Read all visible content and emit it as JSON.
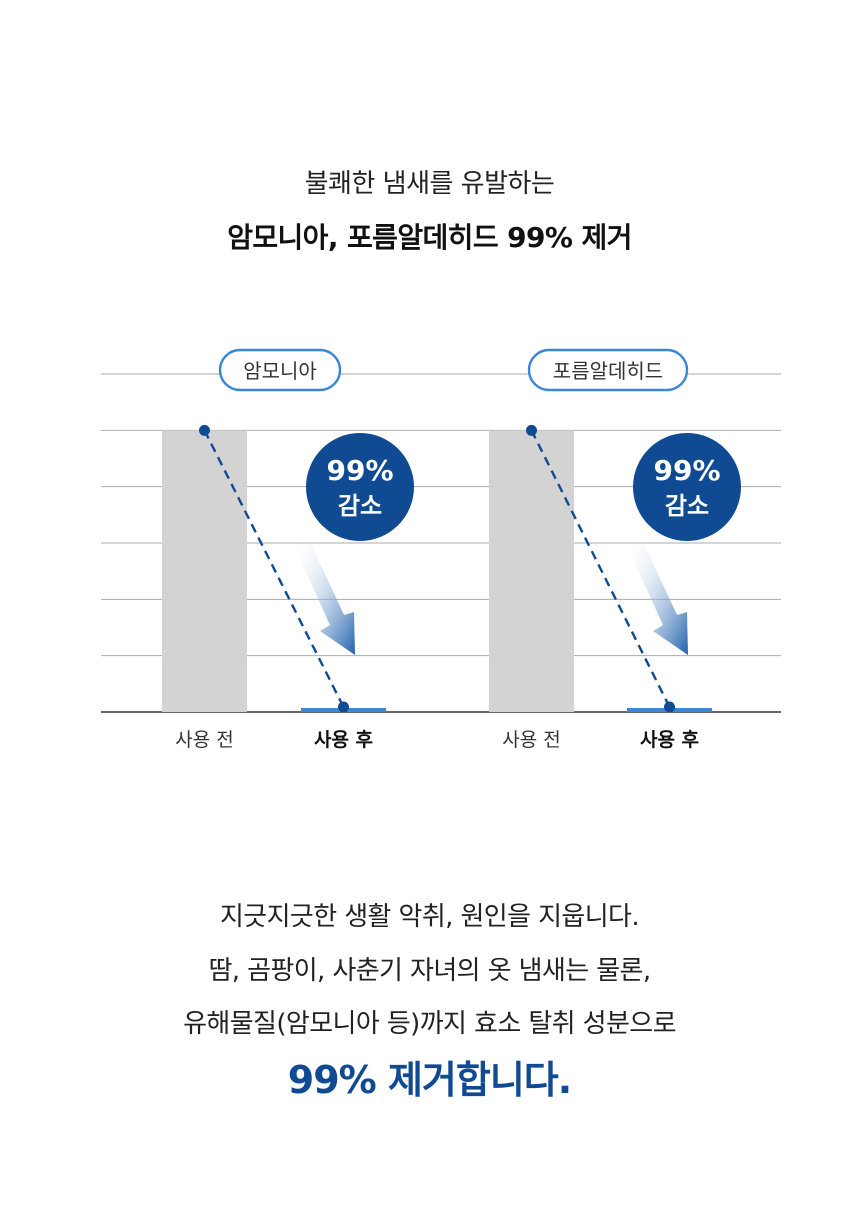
{
  "header": {
    "line1": "불쾌한 냄새를 유발하는",
    "line2": "암모니아, 포름알데히드 99% 제거"
  },
  "chart_data": [
    {
      "type": "bar",
      "title": "암모니아",
      "categories": [
        "사용 전",
        "사용 후"
      ],
      "values": [
        100,
        1
      ],
      "ylim": [
        0,
        120
      ],
      "grid": true,
      "badge": [
        "99%",
        "감소"
      ]
    },
    {
      "type": "bar",
      "title": "포름알데히드",
      "categories": [
        "사용 전",
        "사용 후"
      ],
      "values": [
        100,
        1
      ],
      "ylim": [
        0,
        120
      ],
      "grid": true,
      "badge": [
        "99%",
        "감소"
      ]
    }
  ],
  "colors": {
    "before_bar": "#d3d3d3",
    "after_bar": "#3a86d9",
    "badge": "#0f4a92",
    "dashed_line": "#0f4a92",
    "grid": "#888888"
  },
  "body": {
    "line1": "지긋지긋한 생활 악취, 원인을 지웁니다.",
    "line2": "땀, 곰팡이, 사춘기 자녀의 옷 냄새는 물론,",
    "line3": "유해물질(암모니아 등)까지 효소 탈취 성분으로",
    "emphasis": "99% 제거합니다."
  }
}
